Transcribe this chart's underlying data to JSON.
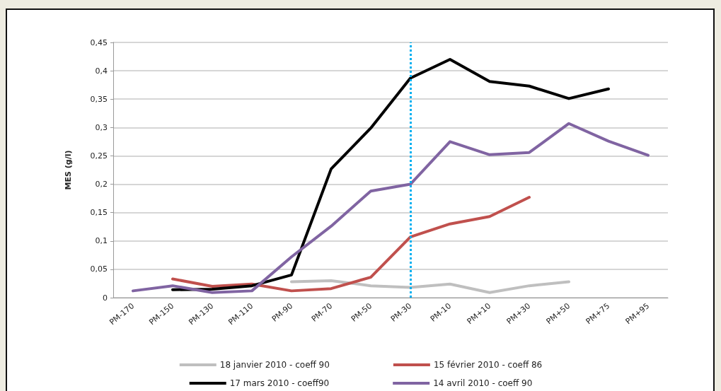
{
  "chart_data": {
    "type": "line",
    "ylabel": "MES (g/l)",
    "categories": [
      "PM-170",
      "PM-150",
      "PM-130",
      "PM-110",
      "PM-90",
      "PM-70",
      "PM-50",
      "PM-30",
      "PM-10",
      "PM+10",
      "PM+30",
      "PM+50",
      "PM+75",
      "PM+95"
    ],
    "series": [
      {
        "name": "18 janvier 2010 - coeff 90",
        "color": "#bfbfbf",
        "values": [
          null,
          null,
          null,
          null,
          0.028,
          0.03,
          0.021,
          0.018,
          0.024,
          0.009,
          0.021,
          0.028,
          null,
          null
        ]
      },
      {
        "name": "15 février 2010 - coeff 86",
        "color": "#c0504d",
        "values": [
          null,
          0.033,
          0.02,
          0.024,
          0.012,
          0.016,
          0.036,
          0.107,
          0.13,
          0.143,
          0.177,
          null,
          null,
          null
        ]
      },
      {
        "name": "17 mars 2010 - coeff90",
        "color": "#000000",
        "values": [
          null,
          0.014,
          0.015,
          0.021,
          0.04,
          0.227,
          0.299,
          0.387,
          0.42,
          0.381,
          0.373,
          0.351,
          0.368,
          null
        ]
      },
      {
        "name": "14 avril 2010 - coeff 90",
        "color": "#8064a2",
        "values": [
          0.012,
          0.021,
          0.009,
          0.012,
          0.072,
          0.126,
          0.188,
          0.2,
          0.275,
          0.252,
          0.256,
          0.307,
          0.276,
          0.251
        ]
      }
    ],
    "ylim": [
      0,
      0.45
    ],
    "yticks": [
      0,
      {
        "value": 0.05,
        "label": "0,05"
      },
      {
        "value": 0.1,
        "label": "0,1"
      },
      {
        "value": 0.15,
        "label": "0,15"
      },
      {
        "value": 0.2,
        "label": "0,2"
      },
      {
        "value": 0.25,
        "label": "0,25"
      },
      {
        "value": 0.3,
        "label": "0,3"
      },
      {
        "value": 0.35,
        "label": "0,35"
      },
      {
        "value": 0.4,
        "label": "0,4"
      },
      {
        "value": 0.45,
        "label": "0,45"
      }
    ],
    "ref_lines": [
      {
        "axis": "x",
        "value": "PM-30",
        "color": "#00b0f0",
        "line_style": "dotted"
      }
    ],
    "grid": "y",
    "legend": "bottom",
    "marker": "none",
    "line_style": "solid"
  }
}
